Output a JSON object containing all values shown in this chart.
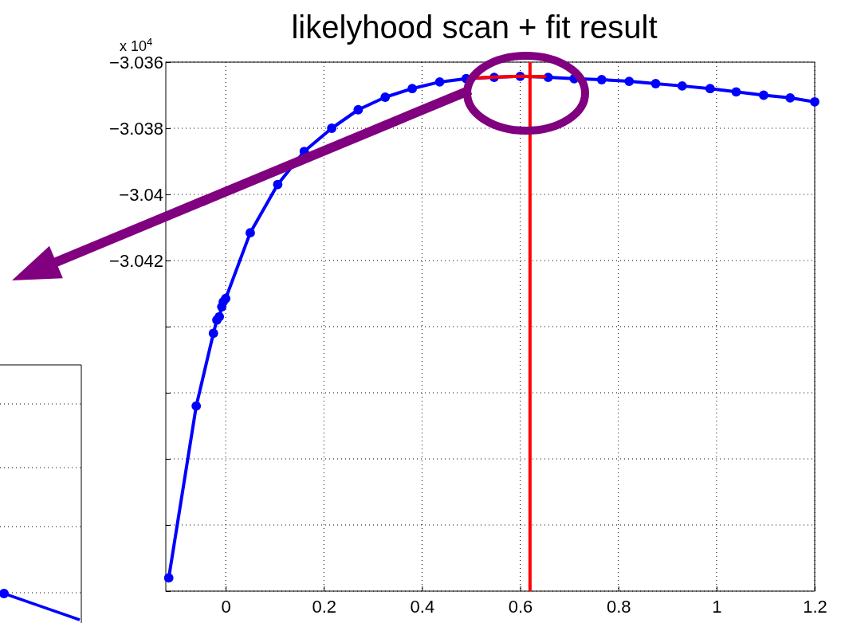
{
  "chart_data": {
    "type": "line",
    "title": "likelyhood scan + fit result",
    "annotations": [
      "x 10$^{4}$"
    ],
    "xlim": [
      -0.122,
      1.2
    ],
    "xticks": [
      {
        "value": 0,
        "label": "0"
      },
      0.2,
      0.4,
      0.6,
      0.8,
      {
        "value": 1,
        "label": "1"
      },
      1.2
    ],
    "ylim": [
      -3.052,
      -3.036
    ],
    "yticks": [
      {
        "value": -3.036,
        "label": "−3.036"
      },
      {
        "value": -3.038,
        "label": "−3.038"
      },
      {
        "value": -3.04,
        "label": "−3.04"
      },
      {
        "value": -3.042,
        "label": "−3.042"
      },
      {
        "value": -3.044,
        "label": null
      },
      {
        "value": -3.046,
        "label": null
      },
      {
        "value": -3.048,
        "label": null
      },
      {
        "value": -3.05,
        "label": null
      },
      {
        "value": -3.052,
        "label": null
      }
    ],
    "grid": true,
    "marker": "circle",
    "line_style": "solid",
    "series": [
      {
        "color": "#0000ff",
        "x": [
          -0.116,
          -0.06,
          -0.025,
          -0.018,
          -0.013,
          -0.008,
          -0.005,
          0,
          0.05,
          0.106,
          0.16,
          0.216,
          0.27,
          0.325,
          0.38,
          0.436,
          0.49,
          0.547,
          0.6,
          0.657,
          0.71,
          0.766,
          0.822,
          0.876,
          0.93,
          0.987,
          1.04,
          1.096,
          1.15,
          1.2
        ],
        "values": [
          -3.0516,
          -3.0464,
          -3.0442,
          -3.0438,
          -3.0437,
          -3.0434,
          -3.04325,
          -3.04315,
          -3.04116,
          -3.0397,
          -3.0387,
          -3.038,
          -3.03744,
          -3.03706,
          -3.0368,
          -3.0366,
          -3.0365,
          -3.03646,
          -3.03643,
          -3.03646,
          -3.0365,
          -3.03653,
          -3.03658,
          -3.03665,
          -3.03672,
          -3.0368,
          -3.0369,
          -3.037,
          -3.03708,
          -3.0372
        ]
      },
      {
        "type": "line",
        "marker": "none",
        "color": "#ff0000",
        "x": [
          0.5,
          0.55,
          0.6,
          0.65
        ],
        "values": [
          -3.03648,
          -3.03645,
          -3.03643,
          -3.03644
        ]
      }
    ],
    "ref_lines": [
      {
        "axis": "x",
        "value": 0.62,
        "color": "#ff0000",
        "line_style": "solid"
      }
    ]
  }
}
